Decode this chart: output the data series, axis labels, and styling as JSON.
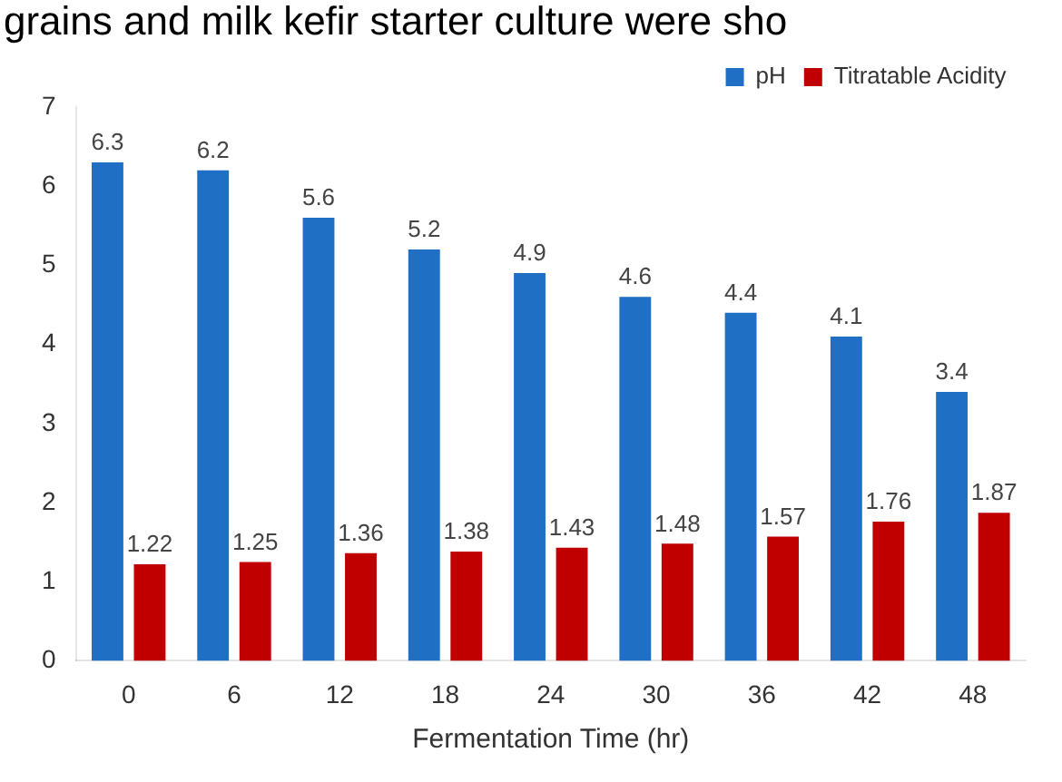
{
  "chart_data": {
    "type": "bar",
    "xlabel": "Fermentation Time (hr)",
    "categories": [
      "0",
      "6",
      "12",
      "18",
      "24",
      "30",
      "36",
      "42",
      "48"
    ],
    "series": [
      {
        "name": "pH",
        "color": "#1f6fc5",
        "values": [
          6.3,
          6.2,
          5.6,
          5.2,
          4.9,
          4.6,
          4.4,
          4.1,
          3.4
        ]
      },
      {
        "name": "Titratable Acidity",
        "color": "#c00000",
        "values": [
          1.22,
          1.25,
          1.36,
          1.38,
          1.43,
          1.48,
          1.57,
          1.76,
          1.87
        ]
      }
    ],
    "ylim": [
      0,
      7
    ],
    "yticks": [
      0,
      1,
      2,
      3,
      4,
      5,
      6,
      7
    ],
    "grid": false,
    "legend": "top right",
    "data_labels": true,
    "annotations": [
      "grains and milk kefir starter culture were sho"
    ]
  }
}
